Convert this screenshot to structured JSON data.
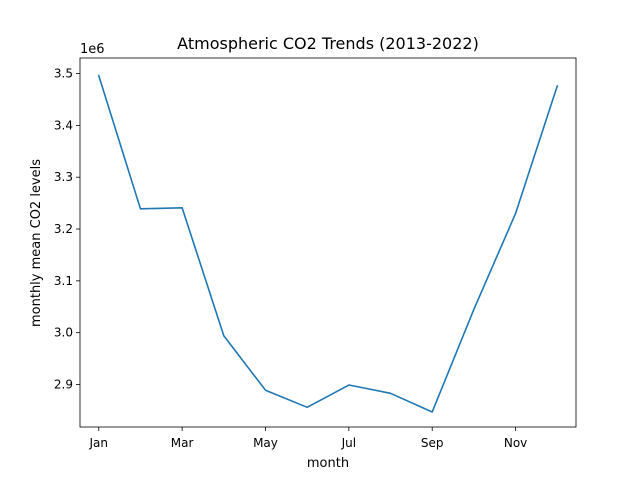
{
  "chart_data": {
    "type": "line",
    "title": "Atmospheric CO2 Trends (2013-2022)",
    "xlabel": "month",
    "ylabel": "monthly mean CO2 levels",
    "offset_label": "1e6",
    "x": [
      1,
      2,
      3,
      4,
      5,
      6,
      7,
      8,
      9,
      10,
      11,
      12
    ],
    "x_tick_positions": [
      1,
      3,
      5,
      7,
      9,
      11
    ],
    "x_tick_labels": [
      "Jan",
      "Mar",
      "May",
      "Jul",
      "Sep",
      "Nov"
    ],
    "y_ticks": [
      2.9,
      3.0,
      3.1,
      3.2,
      3.3,
      3.4,
      3.5
    ],
    "y_tick_labels": [
      "2.9",
      "3.0",
      "3.1",
      "3.2",
      "3.3",
      "3.4",
      "3.5"
    ],
    "xlim": [
      0.55,
      12.45
    ],
    "ylim": [
      2.818,
      3.53
    ],
    "grid": false,
    "series": [
      {
        "color": "#1f77b4",
        "values": [
          3.496,
          3.239,
          3.241,
          2.994,
          2.889,
          2.856,
          2.899,
          2.883,
          2.847,
          3.045,
          3.23,
          3.476
        ]
      }
    ]
  }
}
